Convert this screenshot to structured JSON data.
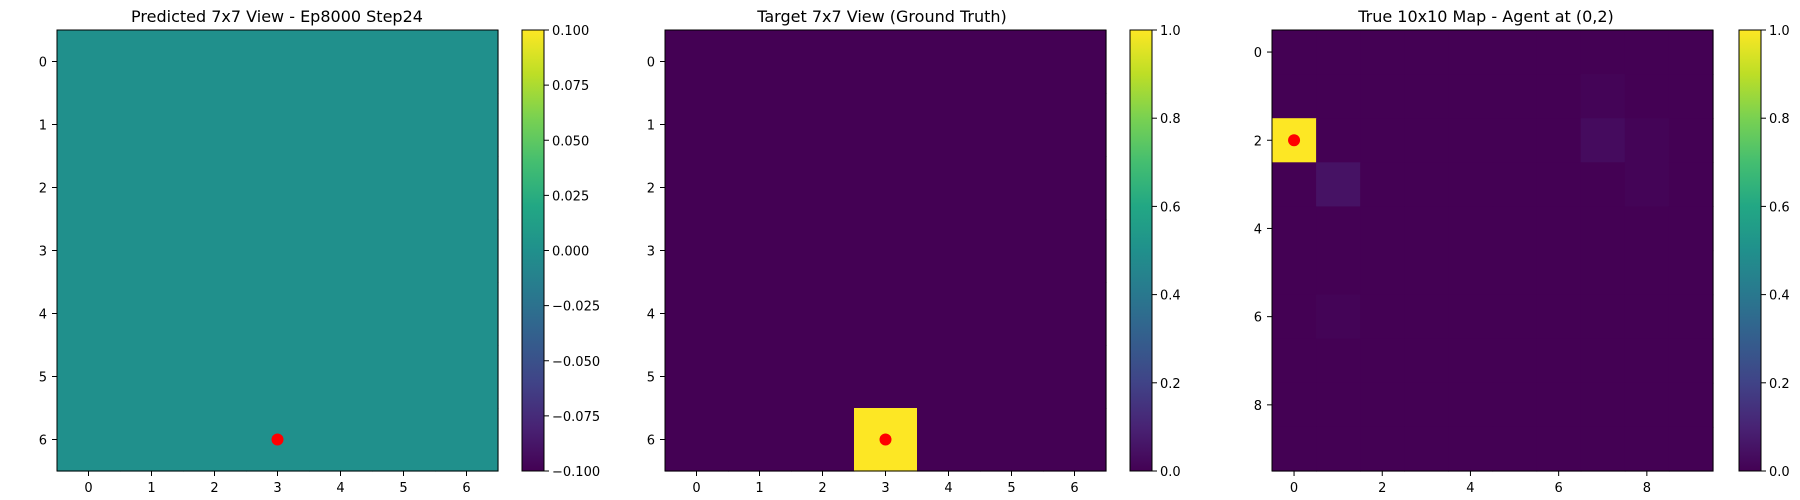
{
  "chart_data": [
    {
      "type": "heatmap",
      "title": "Predicted 7x7 View - Ep8000 Step24",
      "colormap": "viridis",
      "rows": 7,
      "cols": 7,
      "values": [
        [
          0,
          0,
          0,
          0,
          0,
          0,
          0
        ],
        [
          0,
          0,
          0,
          0,
          0,
          0,
          0
        ],
        [
          0,
          0,
          0,
          0,
          0,
          0,
          0
        ],
        [
          0,
          0,
          0,
          0,
          0,
          0,
          0
        ],
        [
          0,
          0,
          0,
          0,
          0,
          0,
          0
        ],
        [
          0,
          0,
          0,
          0,
          0,
          0,
          0
        ],
        [
          0,
          0,
          0,
          0,
          0,
          0,
          0
        ]
      ],
      "vlim": [
        -0.1,
        0.1
      ],
      "x_ticks": [
        0,
        1,
        2,
        3,
        4,
        5,
        6
      ],
      "y_ticks": [
        0,
        1,
        2,
        3,
        4,
        5,
        6
      ],
      "colorbar_ticks": [
        "0.100",
        "0.075",
        "0.050",
        "0.025",
        "0.000",
        "−0.025",
        "−0.050",
        "−0.075",
        "−0.100"
      ],
      "colorbar_tick_values": [
        0.1,
        0.075,
        0.05,
        0.025,
        0,
        -0.025,
        -0.05,
        -0.075,
        -0.1
      ],
      "marker": {
        "x": 3,
        "y": 6,
        "color": "#ff0000"
      }
    },
    {
      "type": "heatmap",
      "title": "Target 7x7 View (Ground Truth)",
      "colormap": "viridis",
      "rows": 7,
      "cols": 7,
      "values": [
        [
          0,
          0,
          0,
          0,
          0,
          0,
          0
        ],
        [
          0,
          0,
          0,
          0,
          0,
          0,
          0
        ],
        [
          0,
          0,
          0,
          0,
          0,
          0,
          0
        ],
        [
          0,
          0,
          0,
          0,
          0,
          0,
          0
        ],
        [
          0,
          0,
          0,
          0,
          0,
          0,
          0
        ],
        [
          0,
          0,
          0,
          0,
          0,
          0,
          0
        ],
        [
          0,
          0,
          0,
          1,
          0,
          0,
          0
        ]
      ],
      "vlim": [
        0,
        1
      ],
      "x_ticks": [
        0,
        1,
        2,
        3,
        4,
        5,
        6
      ],
      "y_ticks": [
        0,
        1,
        2,
        3,
        4,
        5,
        6
      ],
      "colorbar_ticks": [
        "1.0",
        "0.8",
        "0.6",
        "0.4",
        "0.2",
        "0.0"
      ],
      "colorbar_tick_values": [
        1,
        0.8,
        0.6,
        0.4,
        0.2,
        0
      ],
      "marker": {
        "x": 3,
        "y": 6,
        "color": "#ff0000"
      }
    },
    {
      "type": "heatmap",
      "title": "True 10x10 Map - Agent at (0,2)",
      "colormap": "viridis",
      "rows": 10,
      "cols": 10,
      "values": [
        [
          0,
          0,
          0,
          0,
          0,
          0,
          0,
          0,
          0,
          0
        ],
        [
          0,
          0,
          0,
          0,
          0,
          0,
          0,
          0.01,
          0,
          0
        ],
        [
          1,
          0,
          0,
          0,
          0,
          0,
          0,
          0.03,
          0.01,
          0
        ],
        [
          0,
          0.05,
          0,
          0,
          0,
          0,
          0,
          0,
          0.01,
          0
        ],
        [
          0,
          0,
          0,
          0,
          0,
          0,
          0,
          0,
          0,
          0
        ],
        [
          0,
          0,
          0,
          0,
          0,
          0,
          0,
          0,
          0,
          0
        ],
        [
          0,
          0.01,
          0,
          0,
          0,
          0,
          0,
          0,
          0,
          0
        ],
        [
          0,
          0,
          0,
          0,
          0,
          0,
          0,
          0,
          0,
          0
        ],
        [
          0,
          0,
          0,
          0,
          0,
          0,
          0,
          0,
          0,
          0
        ],
        [
          0,
          0,
          0,
          0,
          0,
          0,
          0,
          0,
          0,
          0
        ]
      ],
      "vlim": [
        0,
        1
      ],
      "x_ticks": [
        0,
        2,
        4,
        6,
        8
      ],
      "y_ticks": [
        0,
        2,
        4,
        6,
        8
      ],
      "colorbar_ticks": [
        "1.0",
        "0.8",
        "0.6",
        "0.4",
        "0.2",
        "0.0"
      ],
      "colorbar_tick_values": [
        1,
        0.8,
        0.6,
        0.4,
        0.2,
        0
      ],
      "marker": {
        "x": 0,
        "y": 2,
        "color": "#ff0000"
      }
    }
  ]
}
